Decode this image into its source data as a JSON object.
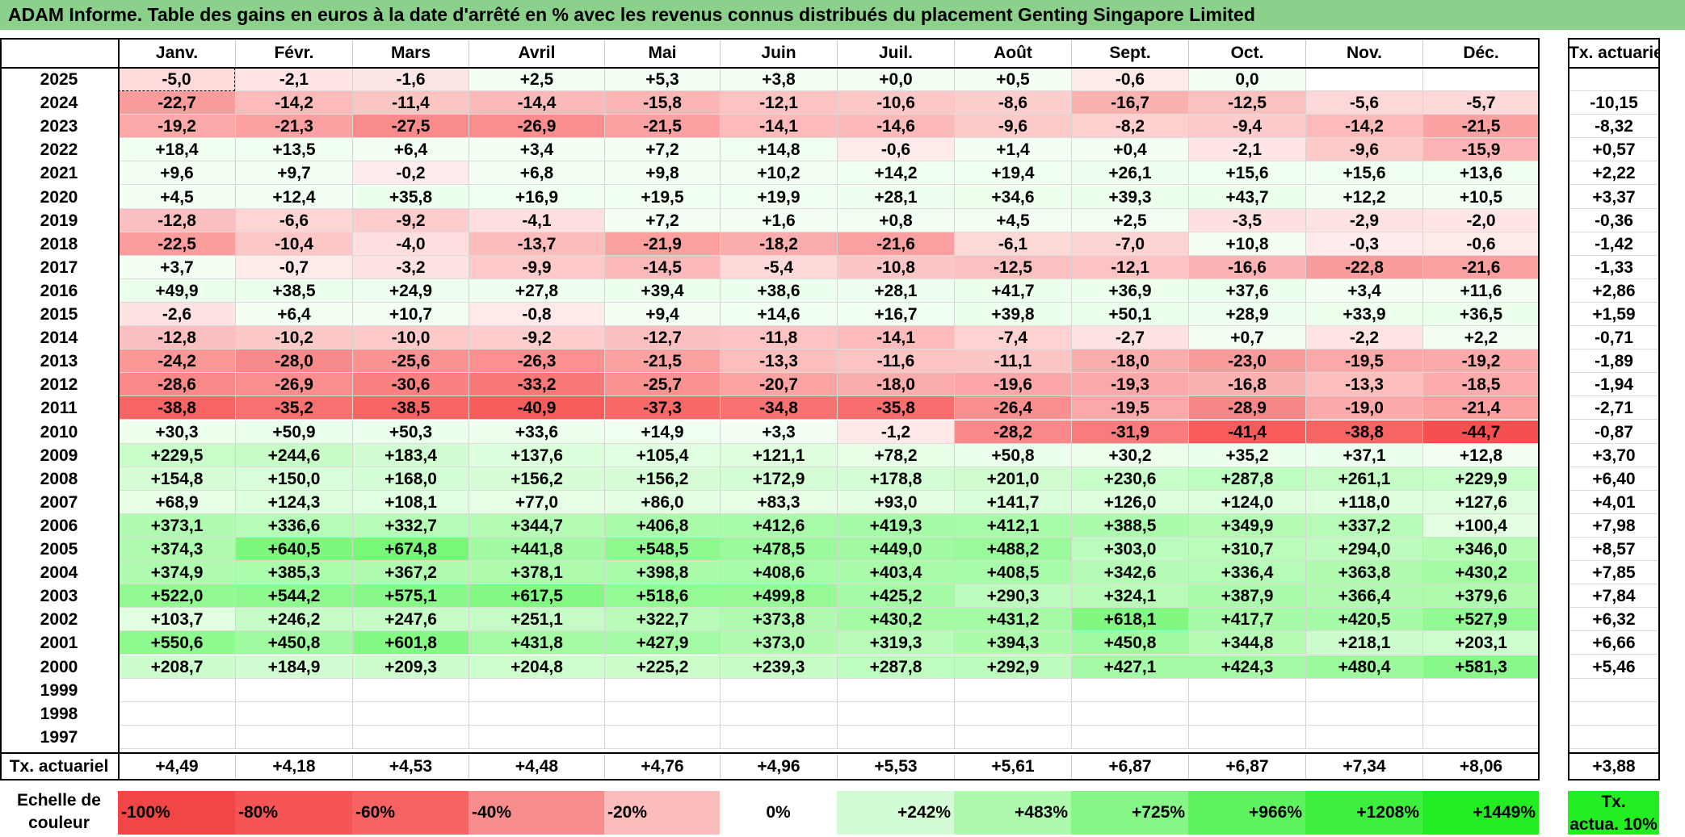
{
  "title": "ADAM Informe. Table des gains en euros à la date d'arrêté en % avec les revenus connus distribués du placement Genting Singapore Limited",
  "chart_data": {
    "type": "heatmap",
    "columns": [
      "Janv.",
      "Févr.",
      "Mars",
      "Avril",
      "Mai",
      "Juin",
      "Juil.",
      "Août",
      "Sept.",
      "Oct.",
      "Nov.",
      "Déc."
    ],
    "annual_header": "Tx. actuariel",
    "rows": [
      {
        "year": "2025",
        "values": [
          "-5,0",
          "-2,1",
          "-1,6",
          "+2,5",
          "+5,3",
          "+3,8",
          "+0,0",
          "+0,5",
          "-0,6",
          "0,0",
          "",
          ""
        ],
        "annual": ""
      },
      {
        "year": "2024",
        "values": [
          "-22,7",
          "-14,2",
          "-11,4",
          "-14,4",
          "-15,8",
          "-12,1",
          "-10,6",
          "-8,6",
          "-16,7",
          "-12,5",
          "-5,6",
          "-5,7"
        ],
        "annual": "-10,15"
      },
      {
        "year": "2023",
        "values": [
          "-19,2",
          "-21,3",
          "-27,5",
          "-26,9",
          "-21,5",
          "-14,1",
          "-14,6",
          "-9,6",
          "-8,2",
          "-9,4",
          "-14,2",
          "-21,5"
        ],
        "annual": "-8,32"
      },
      {
        "year": "2022",
        "values": [
          "+18,4",
          "+13,5",
          "+6,4",
          "+3,4",
          "+7,2",
          "+14,8",
          "-0,6",
          "+1,4",
          "+0,4",
          "-2,1",
          "-9,6",
          "-15,9"
        ],
        "annual": "+0,57"
      },
      {
        "year": "2021",
        "values": [
          "+9,6",
          "+9,7",
          "-0,2",
          "+6,8",
          "+9,8",
          "+10,2",
          "+14,2",
          "+19,4",
          "+26,1",
          "+15,6",
          "+15,6",
          "+13,6"
        ],
        "annual": "+2,22"
      },
      {
        "year": "2020",
        "values": [
          "+4,5",
          "+12,4",
          "+35,8",
          "+16,9",
          "+19,5",
          "+19,9",
          "+28,1",
          "+34,6",
          "+39,3",
          "+43,7",
          "+12,2",
          "+10,5"
        ],
        "annual": "+3,37"
      },
      {
        "year": "2019",
        "values": [
          "-12,8",
          "-6,6",
          "-9,2",
          "-4,1",
          "+7,2",
          "+1,6",
          "+0,8",
          "+4,5",
          "+2,5",
          "-3,5",
          "-2,9",
          "-2,0"
        ],
        "annual": "-0,36"
      },
      {
        "year": "2018",
        "values": [
          "-22,5",
          "-10,4",
          "-4,0",
          "-13,7",
          "-21,9",
          "-18,2",
          "-21,6",
          "-6,1",
          "-7,0",
          "+10,8",
          "-0,3",
          "-0,6"
        ],
        "annual": "-1,42"
      },
      {
        "year": "2017",
        "values": [
          "+3,7",
          "-0,7",
          "-3,2",
          "-9,9",
          "-14,5",
          "-5,4",
          "-10,8",
          "-12,5",
          "-12,1",
          "-16,6",
          "-22,8",
          "-21,6"
        ],
        "annual": "-1,33"
      },
      {
        "year": "2016",
        "values": [
          "+49,9",
          "+38,5",
          "+24,9",
          "+27,8",
          "+39,4",
          "+38,6",
          "+28,1",
          "+41,7",
          "+36,9",
          "+37,6",
          "+3,4",
          "+11,6"
        ],
        "annual": "+2,86"
      },
      {
        "year": "2015",
        "values": [
          "-2,6",
          "+6,4",
          "+10,7",
          "-0,8",
          "+9,4",
          "+14,6",
          "+16,7",
          "+39,8",
          "+50,1",
          "+28,9",
          "+33,9",
          "+36,5"
        ],
        "annual": "+1,59"
      },
      {
        "year": "2014",
        "values": [
          "-12,8",
          "-10,2",
          "-10,0",
          "-9,2",
          "-12,7",
          "-11,8",
          "-14,1",
          "-7,4",
          "-2,7",
          "+0,7",
          "-2,2",
          "+2,2"
        ],
        "annual": "-0,71"
      },
      {
        "year": "2013",
        "values": [
          "-24,2",
          "-28,0",
          "-25,6",
          "-26,3",
          "-21,5",
          "-13,3",
          "-11,6",
          "-11,1",
          "-18,0",
          "-23,0",
          "-19,5",
          "-19,2"
        ],
        "annual": "-1,89"
      },
      {
        "year": "2012",
        "values": [
          "-28,6",
          "-26,9",
          "-30,6",
          "-33,2",
          "-25,7",
          "-20,7",
          "-18,0",
          "-19,6",
          "-19,3",
          "-16,8",
          "-13,3",
          "-18,5"
        ],
        "annual": "-1,94"
      },
      {
        "year": "2011",
        "values": [
          "-38,8",
          "-35,2",
          "-38,5",
          "-40,9",
          "-37,3",
          "-34,8",
          "-35,8",
          "-26,4",
          "-19,5",
          "-28,9",
          "-19,0",
          "-21,4"
        ],
        "annual": "-2,71"
      },
      {
        "year": "2010",
        "values": [
          "+30,3",
          "+50,9",
          "+50,3",
          "+33,6",
          "+14,9",
          "+3,3",
          "-1,2",
          "-28,2",
          "-31,9",
          "-41,4",
          "-38,8",
          "-44,7"
        ],
        "annual": "-0,87"
      },
      {
        "year": "2009",
        "values": [
          "+229,5",
          "+244,6",
          "+183,4",
          "+137,6",
          "+105,4",
          "+121,1",
          "+78,2",
          "+50,8",
          "+30,2",
          "+35,2",
          "+37,1",
          "+12,8"
        ],
        "annual": "+3,70"
      },
      {
        "year": "2008",
        "values": [
          "+154,8",
          "+150,0",
          "+168,0",
          "+156,2",
          "+156,2",
          "+172,9",
          "+178,8",
          "+201,0",
          "+230,6",
          "+287,8",
          "+261,1",
          "+229,9"
        ],
        "annual": "+6,40"
      },
      {
        "year": "2007",
        "values": [
          "+68,9",
          "+124,3",
          "+108,1",
          "+77,0",
          "+86,0",
          "+83,3",
          "+93,0",
          "+141,7",
          "+126,0",
          "+124,0",
          "+118,0",
          "+127,6"
        ],
        "annual": "+4,01"
      },
      {
        "year": "2006",
        "values": [
          "+373,1",
          "+336,6",
          "+332,7",
          "+344,7",
          "+406,8",
          "+412,6",
          "+419,3",
          "+412,1",
          "+388,5",
          "+349,9",
          "+337,2",
          "+100,4"
        ],
        "annual": "+7,98"
      },
      {
        "year": "2005",
        "values": [
          "+374,3",
          "+640,5",
          "+674,8",
          "+441,8",
          "+548,5",
          "+478,5",
          "+449,0",
          "+488,2",
          "+303,0",
          "+310,7",
          "+294,0",
          "+346,0"
        ],
        "annual": "+8,57"
      },
      {
        "year": "2004",
        "values": [
          "+374,9",
          "+385,3",
          "+367,2",
          "+378,1",
          "+398,8",
          "+408,6",
          "+403,4",
          "+408,5",
          "+342,6",
          "+336,4",
          "+363,8",
          "+430,2"
        ],
        "annual": "+7,85"
      },
      {
        "year": "2003",
        "values": [
          "+522,0",
          "+544,2",
          "+575,1",
          "+617,5",
          "+518,6",
          "+499,8",
          "+425,2",
          "+290,3",
          "+324,1",
          "+387,9",
          "+366,4",
          "+379,6"
        ],
        "annual": "+7,84"
      },
      {
        "year": "2002",
        "values": [
          "+103,7",
          "+246,2",
          "+247,6",
          "+251,1",
          "+322,7",
          "+373,8",
          "+430,2",
          "+431,2",
          "+618,1",
          "+417,7",
          "+420,5",
          "+527,9"
        ],
        "annual": "+6,32"
      },
      {
        "year": "2001",
        "values": [
          "+550,6",
          "+450,8",
          "+601,8",
          "+431,8",
          "+427,9",
          "+373,0",
          "+319,3",
          "+394,3",
          "+450,8",
          "+344,8",
          "+218,1",
          "+203,1"
        ],
        "annual": "+6,66"
      },
      {
        "year": "2000",
        "values": [
          "+208,7",
          "+184,9",
          "+209,3",
          "+204,8",
          "+225,2",
          "+239,3",
          "+287,8",
          "+292,9",
          "+427,1",
          "+424,3",
          "+480,4",
          "+581,3"
        ],
        "annual": "+5,46"
      },
      {
        "year": "1999",
        "values": [
          "",
          "",
          "",
          "",
          "",
          "",
          "",
          "",
          "",
          "",
          "",
          ""
        ],
        "annual": ""
      },
      {
        "year": "1998",
        "values": [
          "",
          "",
          "",
          "",
          "",
          "",
          "",
          "",
          "",
          "",
          "",
          ""
        ],
        "annual": ""
      },
      {
        "year": "1997",
        "values": [
          "",
          "",
          "",
          "",
          "",
          "",
          "",
          "",
          "",
          "",
          "",
          ""
        ],
        "annual": ""
      }
    ],
    "summary_row": {
      "label": "Tx. actuariel",
      "values": [
        "+4,49",
        "+4,18",
        "+4,53",
        "+4,48",
        "+4,76",
        "+4,96",
        "+5,53",
        "+5,61",
        "+6,87",
        "+6,87",
        "+7,34",
        "+8,06"
      ],
      "annual": "+3,88"
    },
    "scale": {
      "label_line1": "Echelle de",
      "label_line2": "couleur",
      "items": [
        {
          "label": "-100%",
          "color": "#f24545"
        },
        {
          "label": "-80%",
          "color": "#f55555"
        },
        {
          "label": "-60%",
          "color": "#f76262"
        },
        {
          "label": "-40%",
          "color": "#f98c8c"
        },
        {
          "label": "-20%",
          "color": "#fbbcbc"
        },
        {
          "label": "0%",
          "color": "#ffffff"
        },
        {
          "label": "+242%",
          "color": "#d4fcd4"
        },
        {
          "label": "+483%",
          "color": "#aef9ae"
        },
        {
          "label": "+725%",
          "color": "#86f686"
        },
        {
          "label": "+966%",
          "color": "#5ef35e"
        },
        {
          "label": "+1208%",
          "color": "#3ef03e"
        },
        {
          "label": "+1449%",
          "color": "#22ed22"
        }
      ],
      "legend_line1": "Tx.",
      "legend_line2": "actua. 10%",
      "legend_color": "#22ee22"
    },
    "selected_cell": {
      "row": "2025",
      "column": "Janv."
    }
  }
}
